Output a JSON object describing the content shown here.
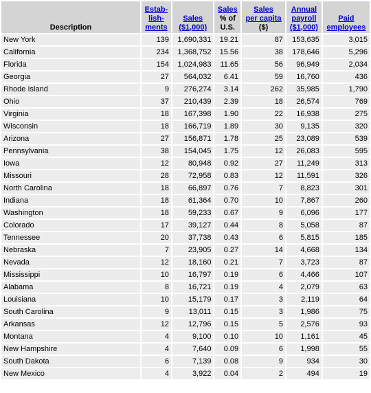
{
  "headers": {
    "description": "Description",
    "establishments": [
      "Estab-",
      "lish-",
      "ments"
    ],
    "sales": [
      "Sales",
      "($1,000)"
    ],
    "sales_pct": [
      "Sales",
      "% of",
      "U.S."
    ],
    "sales_per_capita": [
      "Sales",
      "per capita",
      "($)"
    ],
    "annual_payroll": [
      "Annual",
      "payroll",
      "($1,000)"
    ],
    "paid_employees": [
      "Paid",
      "employees"
    ]
  },
  "rows": [
    [
      "New York",
      "139",
      "1,690,331",
      "19.21",
      "87",
      "153,635",
      "3,015"
    ],
    [
      "California",
      "234",
      "1,368,752",
      "15.56",
      "38",
      "178,646",
      "5,296"
    ],
    [
      "Florida",
      "154",
      "1,024,983",
      "11.65",
      "56",
      "96,949",
      "2,034"
    ],
    [
      "Georgia",
      "27",
      "564,032",
      "6.41",
      "59",
      "16,760",
      "436"
    ],
    [
      "Rhode Island",
      "9",
      "276,274",
      "3.14",
      "262",
      "35,985",
      "1,790"
    ],
    [
      "Ohio",
      "37",
      "210,439",
      "2.39",
      "18",
      "26,574",
      "769"
    ],
    [
      "Virginia",
      "18",
      "167,398",
      "1.90",
      "22",
      "16,938",
      "275"
    ],
    [
      "Wisconsin",
      "18",
      "166,719",
      "1.89",
      "30",
      "9,135",
      "320"
    ],
    [
      "Arizona",
      "27",
      "156,871",
      "1.78",
      "25",
      "23,089",
      "539"
    ],
    [
      "Pennsylvania",
      "38",
      "154,045",
      "1.75",
      "12",
      "26,083",
      "595"
    ],
    [
      "Iowa",
      "12",
      "80,948",
      "0.92",
      "27",
      "11,249",
      "313"
    ],
    [
      "Missouri",
      "28",
      "72,958",
      "0.83",
      "12",
      "11,591",
      "326"
    ],
    [
      "North Carolina",
      "18",
      "66,897",
      "0.76",
      "7",
      "8,823",
      "301"
    ],
    [
      "Indiana",
      "18",
      "61,364",
      "0.70",
      "10",
      "7,867",
      "260"
    ],
    [
      "Washington",
      "18",
      "59,233",
      "0.67",
      "9",
      "6,096",
      "177"
    ],
    [
      "Colorado",
      "17",
      "39,127",
      "0.44",
      "8",
      "5,058",
      "87"
    ],
    [
      "Tennessee",
      "20",
      "37,738",
      "0.43",
      "6",
      "5,815",
      "185"
    ],
    [
      "Nebraska",
      "7",
      "23,905",
      "0.27",
      "14",
      "4,668",
      "134"
    ],
    [
      "Nevada",
      "12",
      "18,160",
      "0.21",
      "7",
      "3,723",
      "87"
    ],
    [
      "Mississippi",
      "10",
      "16,797",
      "0.19",
      "6",
      "4,466",
      "107"
    ],
    [
      "Alabama",
      "8",
      "16,721",
      "0.19",
      "4",
      "2,079",
      "63"
    ],
    [
      "Louisiana",
      "10",
      "15,179",
      "0.17",
      "3",
      "2,119",
      "64"
    ],
    [
      "South Carolina",
      "9",
      "13,011",
      "0.15",
      "3",
      "1,986",
      "75"
    ],
    [
      "Arkansas",
      "12",
      "12,796",
      "0.15",
      "5",
      "2,576",
      "93"
    ],
    [
      "Montana",
      "4",
      "9,100",
      "0.10",
      "10",
      "1,161",
      "45"
    ],
    [
      "New Hampshire",
      "4",
      "7,640",
      "0.09",
      "6",
      "1,998",
      "55"
    ],
    [
      "South Dakota",
      "6",
      "7,139",
      "0.08",
      "9",
      "934",
      "30"
    ],
    [
      "New Mexico",
      "4",
      "3,922",
      "0.04",
      "2",
      "494",
      "19"
    ]
  ]
}
